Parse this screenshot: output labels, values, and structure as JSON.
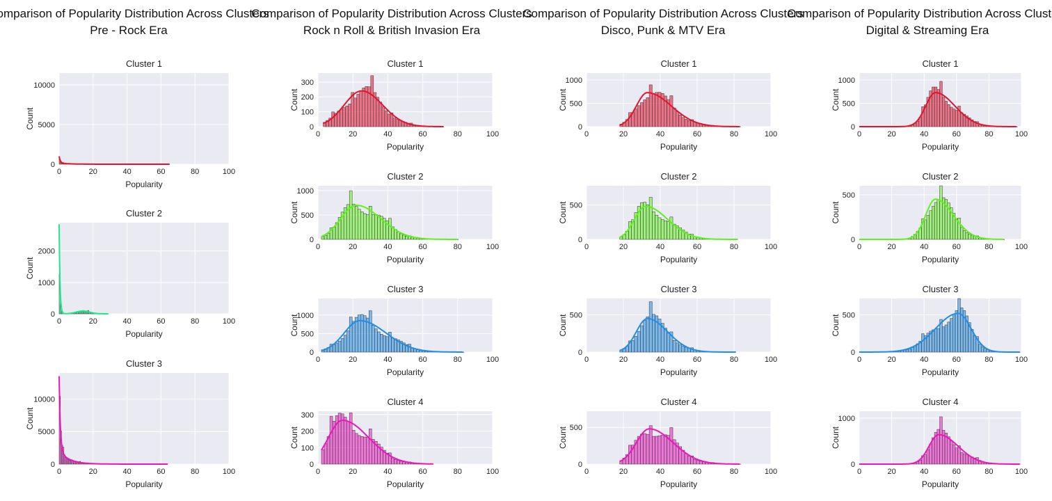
{
  "colors": {
    "cluster_1": "#e8112d",
    "cluster_2": "#5ef21b",
    "cluster_3": "#1e8ee8",
    "cluster_4": "#ec15c0",
    "pre_rock_cluster_2": "#1de88c"
  },
  "chart_data": [
    {
      "type": "histogram",
      "era_title": [
        "Comparison of Popularity Distribution Across Clusters",
        "Pre - Rock Era"
      ],
      "panels": [
        {
          "title": "Cluster 1",
          "xlabel": "Popularity",
          "ylabel": "Count",
          "xlim": [
            0,
            100
          ],
          "ylim": [
            0,
            11500
          ],
          "xticks": [
            0,
            20,
            40,
            60,
            80,
            100
          ],
          "yticks": [
            0,
            5000,
            10000
          ],
          "color": "#e8112d",
          "range": [
            0,
            65
          ],
          "peak": 1000,
          "shape": "decay"
        },
        {
          "title": "Cluster 2",
          "xlabel": "Popularity",
          "ylabel": "Count",
          "xlim": [
            0,
            100
          ],
          "ylim": [
            0,
            2900
          ],
          "xticks": [
            0,
            20,
            40,
            60,
            80,
            100
          ],
          "yticks": [
            0,
            1000,
            2000
          ],
          "color": "#1de88c",
          "range": [
            0,
            29
          ],
          "peak": 2850,
          "shape": "spike_bump"
        },
        {
          "title": "Cluster 3",
          "xlabel": "Popularity",
          "ylabel": "Count",
          "xlim": [
            0,
            100
          ],
          "ylim": [
            0,
            14000
          ],
          "xticks": [
            0,
            20,
            40,
            60,
            80,
            100
          ],
          "yticks": [
            0,
            5000,
            10000
          ],
          "color": "#ec15c0",
          "range": [
            0,
            64
          ],
          "peak": 13500,
          "shape": "decay"
        }
      ]
    },
    {
      "type": "histogram",
      "era_title": [
        "Comparison of Popularity Distribution Across Clusters",
        "Rock n Roll & British Invasion Era"
      ],
      "panels": [
        {
          "title": "Cluster 1",
          "xlabel": "Popularity",
          "ylabel": "Count",
          "xlim": [
            0,
            100
          ],
          "ylim": [
            0,
            360
          ],
          "xticks": [
            0,
            20,
            40,
            60,
            80,
            100
          ],
          "yticks": [
            0,
            100,
            200,
            300
          ],
          "color": "#e8112d",
          "range": [
            3,
            72
          ],
          "mode": 25,
          "sd_left": 10,
          "sd_right": 12,
          "peak": 240
        },
        {
          "title": "Cluster 2",
          "xlabel": "Popularity",
          "ylabel": "Count",
          "xlim": [
            0,
            100
          ],
          "ylim": [
            0,
            1100
          ],
          "xticks": [
            0,
            20,
            40,
            60,
            80,
            100
          ],
          "yticks": [
            0,
            500,
            1000
          ],
          "color": "#5ef21b",
          "range": [
            2,
            80
          ],
          "mode": 22,
          "sd_left": 9,
          "sd_right": 14,
          "peak": 700
        },
        {
          "title": "Cluster 3",
          "xlabel": "Popularity",
          "ylabel": "Count",
          "xlim": [
            0,
            100
          ],
          "ylim": [
            0,
            1450
          ],
          "xticks": [
            0,
            20,
            40,
            60,
            80,
            100
          ],
          "yticks": [
            0,
            500,
            1000
          ],
          "color": "#1e8ee8",
          "range": [
            2,
            83
          ],
          "mode": 24,
          "sd_left": 9,
          "sd_right": 15,
          "peak": 850
        },
        {
          "title": "Cluster 4",
          "xlabel": "Popularity",
          "ylabel": "Count",
          "xlim": [
            0,
            100
          ],
          "ylim": [
            0,
            320
          ],
          "xticks": [
            0,
            20,
            40,
            60,
            80,
            100
          ],
          "yticks": [
            0,
            100,
            200,
            300
          ],
          "color": "#ec15c0",
          "range": [
            2,
            66
          ],
          "mode": 14,
          "sd_left": 8,
          "sd_right": 15,
          "peak": 265
        }
      ]
    },
    {
      "type": "histogram",
      "era_title": [
        "Comparison of Popularity Distribution Across Clusters",
        "Disco, Punk & MTV Era"
      ],
      "panels": [
        {
          "title": "Cluster 1",
          "xlabel": "Popularity",
          "ylabel": "Count",
          "xlim": [
            0,
            100
          ],
          "ylim": [
            0,
            1150
          ],
          "xticks": [
            0,
            20,
            40,
            60,
            80,
            100
          ],
          "yticks": [
            0,
            500,
            1000
          ],
          "color": "#e8112d",
          "range": [
            18,
            83
          ],
          "mode": 33,
          "sd_left": 6,
          "sd_right": 13,
          "peak": 730
        },
        {
          "title": "Cluster 2",
          "xlabel": "Popularity",
          "ylabel": "Count",
          "xlim": [
            0,
            100
          ],
          "ylim": [
            0,
            780
          ],
          "xticks": [
            0,
            20,
            40,
            60,
            80,
            100
          ],
          "yticks": [
            0,
            500
          ],
          "color": "#5ef21b",
          "range": [
            18,
            82
          ],
          "mode": 32,
          "sd_left": 6,
          "sd_right": 12,
          "peak": 480
        },
        {
          "title": "Cluster 3",
          "xlabel": "Popularity",
          "ylabel": "Count",
          "xlim": [
            0,
            100
          ],
          "ylim": [
            0,
            720
          ],
          "xticks": [
            0,
            20,
            40,
            60,
            80,
            100
          ],
          "yticks": [
            0,
            500
          ],
          "color": "#1e8ee8",
          "range": [
            18,
            81
          ],
          "mode": 33,
          "sd_left": 6,
          "sd_right": 11,
          "peak": 450
        },
        {
          "title": "Cluster 4",
          "xlabel": "Popularity",
          "ylabel": "Count",
          "xlim": [
            0,
            100
          ],
          "ylim": [
            0,
            720
          ],
          "xticks": [
            0,
            20,
            40,
            60,
            80,
            100
          ],
          "yticks": [
            0,
            500
          ],
          "color": "#ec15c0",
          "range": [
            18,
            83
          ],
          "mode": 34,
          "sd_left": 7,
          "sd_right": 13,
          "peak": 480
        }
      ]
    },
    {
      "type": "histogram",
      "era_title": [
        "Comparison of Popularity Distribution Across Clusters",
        "Digital & Streaming Era"
      ],
      "panels": [
        {
          "title": "Cluster 1",
          "xlabel": "Popularity",
          "ylabel": "Count",
          "xlim": [
            0,
            100
          ],
          "ylim": [
            0,
            1150
          ],
          "xticks": [
            0,
            20,
            40,
            60,
            80,
            100
          ],
          "yticks": [
            0,
            500,
            1000
          ],
          "color": "#e8112d",
          "range": [
            0,
            97
          ],
          "mode": 47,
          "sd_left": 6,
          "sd_right": 12,
          "peak": 730
        },
        {
          "title": "Cluster 2",
          "xlabel": "Popularity",
          "ylabel": "Count",
          "xlim": [
            0,
            100
          ],
          "ylim": [
            0,
            600
          ],
          "xticks": [
            0,
            20,
            40,
            60,
            80,
            100
          ],
          "yticks": [
            0,
            500
          ],
          "color": "#5ef21b",
          "range": [
            0,
            89
          ],
          "mode": 47,
          "sd_left": 6,
          "sd_right": 11,
          "peak": 450
        },
        {
          "title": "Cluster 3",
          "xlabel": "Popularity",
          "ylabel": "Count",
          "xlim": [
            0,
            100
          ],
          "ylim": [
            0,
            720
          ],
          "xticks": [
            0,
            20,
            40,
            60,
            80,
            100
          ],
          "yticks": [
            0,
            500
          ],
          "color": "#1e8ee8",
          "range": [
            0,
            99
          ],
          "mode": 61,
          "sd_left": 14,
          "sd_right": 8,
          "peak": 520
        },
        {
          "title": "Cluster 4",
          "xlabel": "Popularity",
          "ylabel": "Count",
          "xlim": [
            0,
            100
          ],
          "ylim": [
            0,
            1150
          ],
          "xticks": [
            0,
            20,
            40,
            60,
            80,
            100
          ],
          "yticks": [
            0,
            1000
          ],
          "color": "#ec15c0",
          "range": [
            0,
            99
          ],
          "mode": 49,
          "sd_left": 6,
          "sd_right": 12,
          "peak": 640
        }
      ]
    }
  ]
}
